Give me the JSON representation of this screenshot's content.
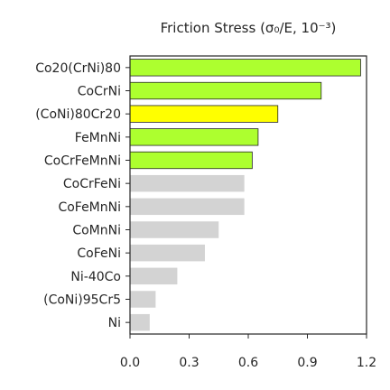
{
  "chart_data": {
    "type": "bar",
    "orientation": "horizontal",
    "title": "Friction Stress (σ₀/E, 10⁻³)",
    "categories": [
      "Co20(CrNi)80",
      "CoCrNi",
      "(CoNi)80Cr20",
      "FeMnNi",
      "CoCrFeMnNi",
      "CoCrFeNi",
      "CoFeMnNi",
      "CoMnNi",
      "CoFeNi",
      "Ni-40Co",
      "(CoNi)95Cr5",
      "Ni"
    ],
    "values": [
      1.17,
      0.97,
      0.75,
      0.65,
      0.62,
      0.58,
      0.58,
      0.45,
      0.38,
      0.24,
      0.13,
      0.1
    ],
    "bar_colors": [
      "#adff2f",
      "#adff2f",
      "#ffff00",
      "#adff2f",
      "#adff2f",
      "#d3d3d3",
      "#d3d3d3",
      "#d3d3d3",
      "#d3d3d3",
      "#d3d3d3",
      "#d3d3d3",
      "#d3d3d3"
    ],
    "xlim": [
      0,
      1.2
    ],
    "xticks": [
      "0.0",
      "0.3",
      "0.6",
      "0.9",
      "1.2"
    ],
    "xtick_values": [
      0,
      0.3,
      0.6,
      0.9,
      1.2
    ],
    "xlabel": "",
    "ylabel": "",
    "grid": false,
    "legend": "none"
  }
}
